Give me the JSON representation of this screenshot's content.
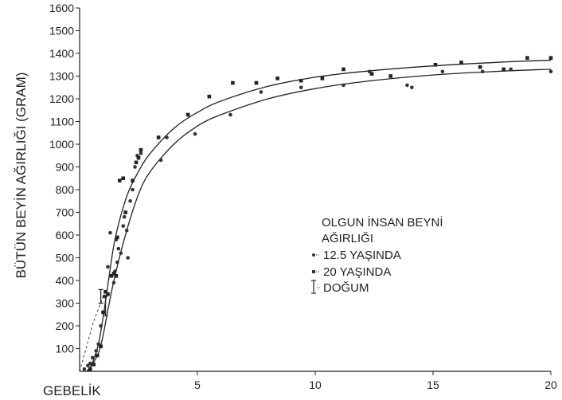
{
  "chart_data": {
    "type": "scatter",
    "title": "",
    "xlabel": "GEBELİK",
    "ylabel": "BÜTÜN BEYİN AĞIRLIĞI (GRAM)",
    "xlim": [
      0,
      20
    ],
    "ylim": [
      0,
      1600
    ],
    "x_ticks": [
      5,
      10,
      15,
      20
    ],
    "y_ticks": [
      100,
      200,
      300,
      400,
      500,
      600,
      700,
      800,
      900,
      1000,
      1100,
      1200,
      1300,
      1400,
      1500,
      1600
    ],
    "grid": false,
    "legend": {
      "title_lines": [
        "OLGUN İNSAN BEYNİ",
        "AĞIRLIĞI"
      ],
      "entries": [
        {
          "label": "12.5 YAŞINDA",
          "marker": "dot"
        },
        {
          "label": "20 YAŞINDA",
          "marker": "square"
        },
        {
          "label": "DOĞUM",
          "marker": "bar"
        }
      ]
    },
    "series": [
      {
        "marker": "dot",
        "points": [
          [
            0.2,
            10
          ],
          [
            0.35,
            25
          ],
          [
            0.45,
            35
          ],
          [
            0.55,
            60
          ],
          [
            0.7,
            90
          ],
          [
            0.8,
            120
          ],
          [
            0.9,
            200
          ],
          [
            1.05,
            330
          ],
          [
            1.2,
            460
          ],
          [
            1.3,
            610
          ],
          [
            1.45,
            390
          ],
          [
            1.5,
            440
          ],
          [
            1.55,
            580
          ],
          [
            1.6,
            480
          ],
          [
            1.65,
            540
          ],
          [
            1.75,
            520
          ],
          [
            1.85,
            640
          ],
          [
            1.9,
            680
          ],
          [
            2.0,
            620
          ],
          [
            2.05,
            500
          ],
          [
            2.15,
            750
          ],
          [
            2.25,
            800
          ],
          [
            2.35,
            900
          ],
          [
            2.45,
            950
          ],
          [
            2.6,
            960
          ],
          [
            3.45,
            930
          ],
          [
            3.7,
            1030
          ],
          [
            4.9,
            1045
          ],
          [
            6.4,
            1130
          ],
          [
            7.7,
            1230
          ],
          [
            9.4,
            1250
          ],
          [
            11.2,
            1260
          ],
          [
            12.3,
            1320
          ],
          [
            13.9,
            1260
          ],
          [
            14.1,
            1250
          ],
          [
            15.4,
            1320
          ],
          [
            17.1,
            1320
          ],
          [
            18.3,
            1330
          ],
          [
            20.0,
            1320
          ]
        ],
        "fit": [
          [
            0.3,
            0
          ],
          [
            0.5,
            25
          ],
          [
            0.8,
            80
          ],
          [
            1.0,
            160
          ],
          [
            1.2,
            270
          ],
          [
            1.5,
            420
          ],
          [
            2.0,
            620
          ],
          [
            2.5,
            780
          ],
          [
            3.0,
            880
          ],
          [
            4.0,
            1000
          ],
          [
            5.0,
            1080
          ],
          [
            6.0,
            1130
          ],
          [
            8.0,
            1200
          ],
          [
            10.0,
            1245
          ],
          [
            12.0,
            1275
          ],
          [
            15.0,
            1305
          ],
          [
            18.0,
            1322
          ],
          [
            20.0,
            1330
          ]
        ]
      },
      {
        "marker": "square",
        "points": [
          [
            0.45,
            10
          ],
          [
            0.6,
            30
          ],
          [
            0.75,
            70
          ],
          [
            0.9,
            110
          ],
          [
            1.0,
            260
          ],
          [
            1.1,
            350
          ],
          [
            1.2,
            340
          ],
          [
            1.35,
            420
          ],
          [
            1.45,
            430
          ],
          [
            1.55,
            420
          ],
          [
            1.6,
            590
          ],
          [
            1.7,
            840
          ],
          [
            1.85,
            850
          ],
          [
            1.95,
            700
          ],
          [
            2.25,
            840
          ],
          [
            2.4,
            920
          ],
          [
            2.5,
            940
          ],
          [
            2.6,
            975
          ],
          [
            3.35,
            1030
          ],
          [
            4.6,
            1130
          ],
          [
            5.5,
            1210
          ],
          [
            6.5,
            1270
          ],
          [
            7.5,
            1270
          ],
          [
            8.4,
            1290
          ],
          [
            9.4,
            1280
          ],
          [
            10.3,
            1290
          ],
          [
            11.2,
            1330
          ],
          [
            12.4,
            1310
          ],
          [
            13.2,
            1300
          ],
          [
            15.1,
            1350
          ],
          [
            16.2,
            1360
          ],
          [
            17.0,
            1340
          ],
          [
            18.0,
            1330
          ],
          [
            19.0,
            1380
          ],
          [
            20.0,
            1380
          ]
        ],
        "fit": [
          [
            0.35,
            0
          ],
          [
            0.55,
            40
          ],
          [
            0.8,
            120
          ],
          [
            1.0,
            240
          ],
          [
            1.2,
            380
          ],
          [
            1.5,
            580
          ],
          [
            2.0,
            770
          ],
          [
            2.5,
            880
          ],
          [
            3.0,
            960
          ],
          [
            4.0,
            1070
          ],
          [
            5.0,
            1140
          ],
          [
            6.0,
            1190
          ],
          [
            8.0,
            1255
          ],
          [
            10.0,
            1295
          ],
          [
            12.0,
            1320
          ],
          [
            15.0,
            1345
          ],
          [
            18.0,
            1362
          ],
          [
            20.0,
            1370
          ]
        ]
      }
    ],
    "extrapolation_dashed": [
      [
        0,
        0
      ],
      [
        0.3,
        110
      ],
      [
        0.6,
        220
      ],
      [
        0.9,
        300
      ],
      [
        1.0,
        330
      ]
    ],
    "birth_markers": [
      {
        "x": 0.9,
        "low": 300,
        "high": 360
      },
      {
        "x": 1.1,
        "low": 245,
        "high": 330
      }
    ]
  }
}
